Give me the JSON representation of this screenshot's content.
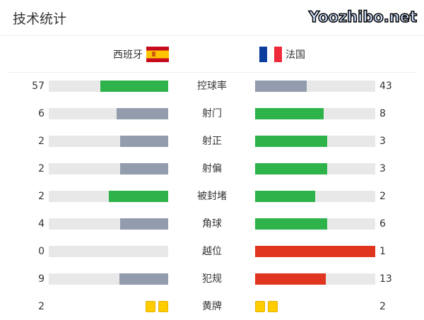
{
  "title": "技术统计",
  "home": {
    "name": "西班牙",
    "flag": "spain-flag"
  },
  "away": {
    "name": "法国",
    "flag": "france-flag"
  },
  "colors": {
    "green": "#2db34a",
    "grey": "#929cad",
    "red": "#e0351f",
    "track": "#e8e8e8",
    "yellow": "#ffcc00"
  },
  "stats": [
    {
      "label": "控球率",
      "home": "57",
      "away": "43",
      "home_pct": 57,
      "away_pct": 43,
      "home_color": "#2db34a",
      "away_color": "#929cad"
    },
    {
      "label": "射门",
      "home": "6",
      "away": "8",
      "home_pct": 43,
      "away_pct": 57,
      "home_color": "#929cad",
      "away_color": "#2db34a"
    },
    {
      "label": "射正",
      "home": "2",
      "away": "3",
      "home_pct": 40,
      "away_pct": 60,
      "home_color": "#929cad",
      "away_color": "#2db34a"
    },
    {
      "label": "射偏",
      "home": "2",
      "away": "3",
      "home_pct": 40,
      "away_pct": 60,
      "home_color": "#929cad",
      "away_color": "#2db34a"
    },
    {
      "label": "被封堵",
      "home": "2",
      "away": "2",
      "home_pct": 50,
      "away_pct": 50,
      "home_color": "#2db34a",
      "away_color": "#2db34a"
    },
    {
      "label": "角球",
      "home": "4",
      "away": "6",
      "home_pct": 40,
      "away_pct": 60,
      "home_color": "#929cad",
      "away_color": "#2db34a"
    },
    {
      "label": "越位",
      "home": "0",
      "away": "1",
      "home_pct": 0,
      "away_pct": 100,
      "home_color": "#929cad",
      "away_color": "#e0351f"
    },
    {
      "label": "犯规",
      "home": "9",
      "away": "13",
      "home_pct": 41,
      "away_pct": 59,
      "home_color": "#929cad",
      "away_color": "#e0351f"
    }
  ],
  "yellow": {
    "label": "黄牌",
    "home": "2",
    "away": "2",
    "home_cards": 2,
    "away_cards": 2
  },
  "watermark": "Yoozhibo.net"
}
